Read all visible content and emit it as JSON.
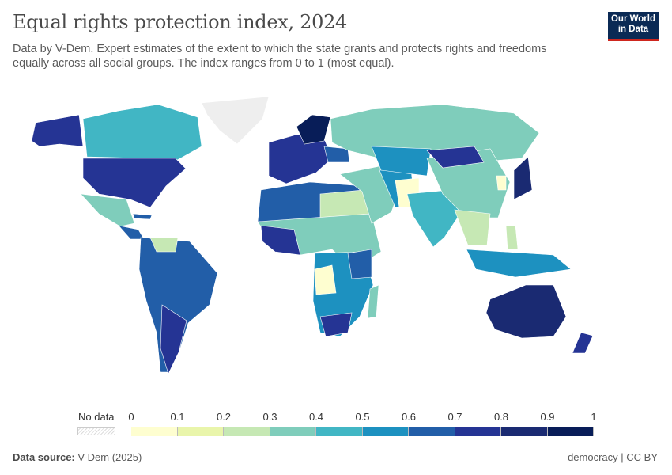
{
  "header": {
    "title": "Equal rights protection index, 2024",
    "subtitle": "Data by V-Dem. Expert estimates of the extent to which the state grants and protects rights and freedoms equally across all social groups. The index ranges from 0 to 1 (most equal).",
    "logo_text": "Our World in Data"
  },
  "legend": {
    "no_data_label": "No data",
    "ticks": [
      "0",
      "0.1",
      "0.2",
      "0.3",
      "0.4",
      "0.5",
      "0.6",
      "0.7",
      "0.8",
      "0.9",
      "1"
    ],
    "colors": [
      "#fefed0",
      "#e9f5ab",
      "#c6e8b4",
      "#7fcdbb",
      "#41b6c4",
      "#1d91c0",
      "#225ea8",
      "#253494",
      "#1a2a72",
      "#081d58"
    ],
    "no_data_color": "#e0e0e0"
  },
  "footer": {
    "source_label": "Data source:",
    "source_value": "V-Dem (2025)",
    "license": "democracy | CC BY"
  }
}
